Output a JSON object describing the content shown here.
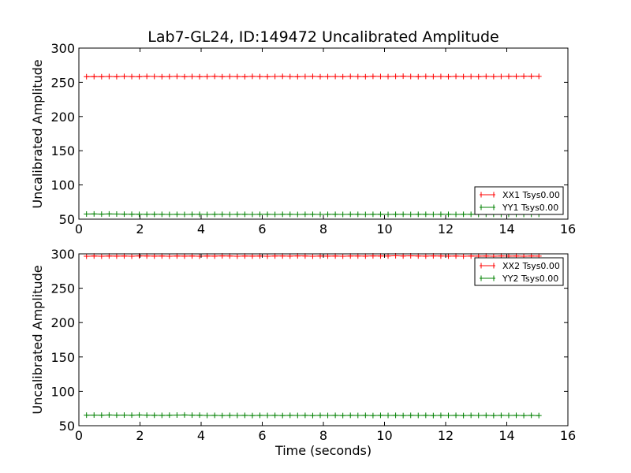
{
  "chart_data": {
    "type": "line",
    "title": "Lab7-GL24, ID:149472 Uncalibrated Amplitude",
    "xlabel": "Time (seconds)",
    "colors": {
      "XX": "#ff0000",
      "YY": "#008000"
    },
    "subplots": [
      {
        "ylabel": "Uncalibrated Amplitude",
        "xlim": [
          0,
          16
        ],
        "ylim": [
          50,
          300
        ],
        "xticks": [
          0,
          2,
          4,
          6,
          8,
          10,
          12,
          14,
          16
        ],
        "yticks": [
          50,
          100,
          150,
          200,
          250,
          300
        ],
        "legend_position": "lower right",
        "series": [
          {
            "name": "XX1 Tsys0.00",
            "color": "#ff0000",
            "x_start": 0.25,
            "x_end": 15.05,
            "count": 61,
            "values": [
              258.3,
              258.4,
              258.2,
              258.5,
              258.3,
              258.6,
              258.4,
              258.2,
              258.7,
              258.5,
              258.3,
              258.4,
              258.6,
              258.3,
              258.5,
              258.2,
              258.4,
              258.7,
              258.3,
              258.5,
              258.4,
              258.2,
              258.6,
              258.4,
              258.3,
              258.5,
              258.7,
              258.4,
              258.2,
              258.5,
              258.6,
              258.3,
              258.4,
              258.5,
              258.2,
              258.6,
              258.4,
              258.3,
              258.7,
              258.5,
              258.4,
              258.6,
              258.9,
              258.5,
              258.3,
              258.6,
              258.4,
              258.5,
              258.3,
              258.6,
              258.4,
              258.5,
              258.3,
              258.6,
              258.4,
              258.5,
              258.7,
              258.6,
              258.9,
              258.8,
              258.7
            ]
          },
          {
            "name": "YY1 Tsys0.00",
            "color": "#008000",
            "x_start": 0.25,
            "x_end": 15.05,
            "count": 61,
            "values": [
              57.5,
              57.6,
              57.4,
              57.6,
              57.5,
              57.3,
              57.2,
              57.1,
              57.0,
              57.1,
              57.0,
              56.9,
              57.0,
              56.9,
              57.0,
              57.0,
              56.9,
              57.0,
              57.0,
              56.9,
              57.0,
              57.0,
              56.9,
              57.0,
              57.0,
              56.9,
              57.0,
              57.0,
              56.9,
              57.0,
              57.0,
              56.9,
              57.0,
              57.0,
              56.9,
              57.0,
              57.0,
              56.9,
              57.0,
              57.0,
              56.9,
              57.0,
              57.0,
              56.9,
              57.0,
              57.0,
              56.9,
              57.0,
              57.0,
              56.9,
              57.0,
              57.0,
              56.9,
              57.0,
              57.0,
              56.9,
              57.0,
              57.0,
              56.9,
              57.0,
              57.0
            ]
          }
        ]
      },
      {
        "ylabel": "Uncalibrated Amplitude",
        "xlim": [
          0,
          16
        ],
        "ylim": [
          50,
          300
        ],
        "xticks": [
          0,
          2,
          4,
          6,
          8,
          10,
          12,
          14,
          16
        ],
        "yticks": [
          50,
          100,
          150,
          200,
          250,
          300
        ],
        "legend_position": "upper right",
        "series": [
          {
            "name": "XX2 Tsys0.00",
            "color": "#ff0000",
            "x_start": 0.25,
            "x_end": 15.05,
            "count": 61,
            "values": [
              296.5,
              296.8,
              296.6,
              296.9,
              296.7,
              296.8,
              296.6,
              297.0,
              296.8,
              296.7,
              296.9,
              296.6,
              296.8,
              296.7,
              296.9,
              296.6,
              296.8,
              296.7,
              297.0,
              296.8,
              296.6,
              296.9,
              296.7,
              296.8,
              296.6,
              296.9,
              296.8,
              296.7,
              297.0,
              296.8,
              296.6,
              296.9,
              296.7,
              296.8,
              296.6,
              296.9,
              296.8,
              296.7,
              297.0,
              296.8,
              296.9,
              297.2,
              296.8,
              297.1,
              296.9,
              296.7,
              297.0,
              296.8,
              296.7,
              296.9,
              296.6,
              296.8,
              296.7,
              296.9,
              296.6,
              296.8,
              296.7,
              296.9,
              296.6,
              296.8,
              296.7
            ]
          },
          {
            "name": "YY2 Tsys0.00",
            "color": "#008000",
            "x_start": 0.25,
            "x_end": 15.05,
            "count": 61,
            "values": [
              65.4,
              65.5,
              65.3,
              65.6,
              65.4,
              65.5,
              65.3,
              65.6,
              65.4,
              65.2,
              65.0,
              65.3,
              65.5,
              65.6,
              65.4,
              65.3,
              64.9,
              65.0,
              64.8,
              65.0,
              64.9,
              65.0,
              64.8,
              65.0,
              64.9,
              65.0,
              64.8,
              65.0,
              64.9,
              65.0,
              64.8,
              65.0,
              64.9,
              65.0,
              64.8,
              65.0,
              64.9,
              65.0,
              64.8,
              65.0,
              64.9,
              65.0,
              64.8,
              65.0,
              64.9,
              65.0,
              64.8,
              65.0,
              64.9,
              65.0,
              64.8,
              65.0,
              64.9,
              65.0,
              64.8,
              65.0,
              64.9,
              65.0,
              64.8,
              65.0,
              64.7
            ]
          }
        ]
      }
    ]
  }
}
